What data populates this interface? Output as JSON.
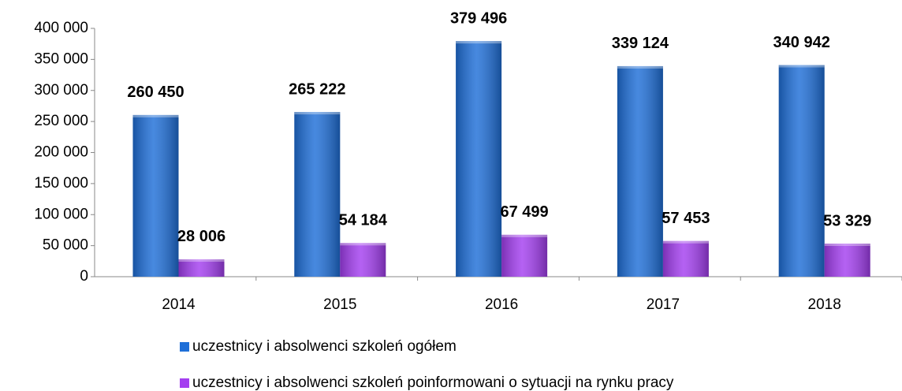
{
  "chart_data": {
    "type": "bar",
    "categories": [
      "2014",
      "2015",
      "2016",
      "2017",
      "2018"
    ],
    "series": [
      {
        "name": "uczestnicy i absolwenci szkoleń ogółem",
        "color": "#1f6fd8",
        "values": [
          260450,
          265222,
          379496,
          339124,
          340942
        ],
        "value_labels": [
          "260 450",
          "265 222",
          "379 496",
          "339 124",
          "340 942"
        ]
      },
      {
        "name": "uczestnicy i absolwenci szkoleń poinformowani o sytuacji na rynku pracy",
        "color": "#a43ff0",
        "values": [
          28006,
          54184,
          67499,
          57453,
          53329
        ],
        "value_labels": [
          "28 006",
          "54 184",
          "67 499",
          "57 453",
          "53 329"
        ]
      }
    ],
    "ylim": [
      0,
      400000
    ],
    "yticks": [
      {
        "value": 0,
        "label": "0"
      },
      {
        "value": 50000,
        "label": "50 000"
      },
      {
        "value": 100000,
        "label": "100 000"
      },
      {
        "value": 150000,
        "label": "150 000"
      },
      {
        "value": 200000,
        "label": "200 000"
      },
      {
        "value": 250000,
        "label": "250 000"
      },
      {
        "value": 300000,
        "label": "300 000"
      },
      {
        "value": 350000,
        "label": "350 000"
      },
      {
        "value": 400000,
        "label": "400 000"
      }
    ],
    "grid": false,
    "legend": "bottom"
  }
}
